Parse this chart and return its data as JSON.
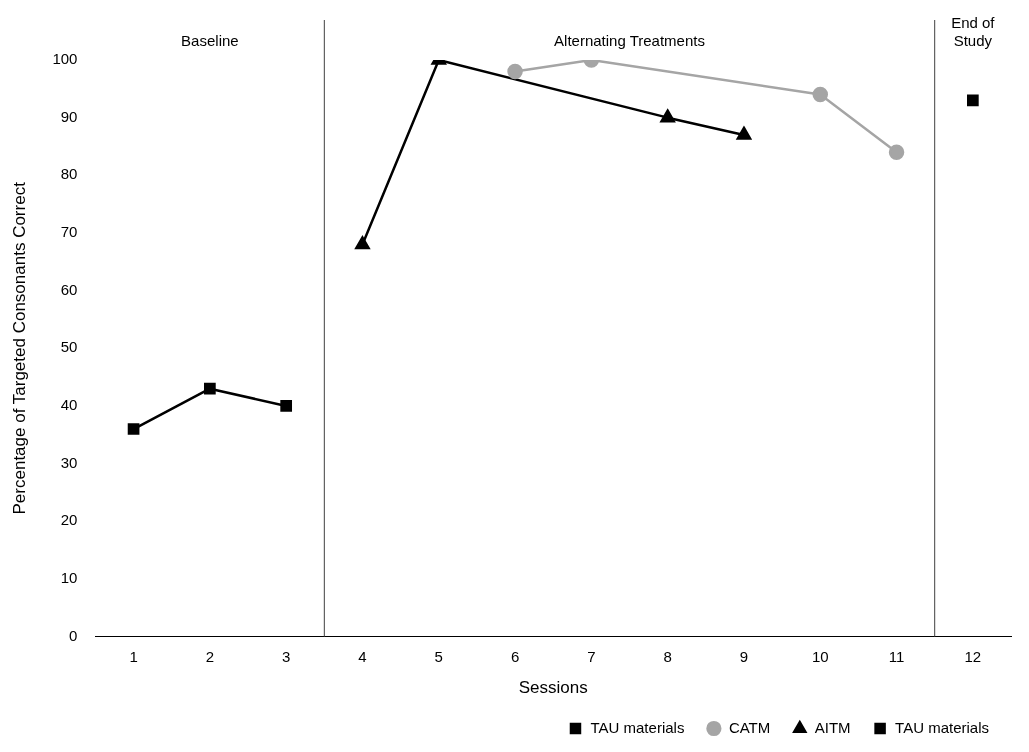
{
  "chart_data": {
    "type": "line",
    "xlabel": "Sessions",
    "ylabel": "Percentage of Targeted Consonants Correct",
    "xlim": [
      0.5,
      12.5
    ],
    "xticks": [
      1,
      2,
      3,
      4,
      5,
      6,
      7,
      8,
      9,
      10,
      11,
      12
    ],
    "ylim": [
      0,
      100
    ],
    "yticks": [
      0,
      10,
      20,
      30,
      40,
      50,
      60,
      70,
      80,
      90,
      100
    ],
    "grid": false,
    "legend": "bottom",
    "line_style": "solid",
    "series": [
      {
        "name": "TAU materials",
        "color": "#000000",
        "marker": "square",
        "x": [
          1,
          2,
          3
        ],
        "values": [
          36,
          43,
          40
        ]
      },
      {
        "name": "CATM",
        "color": "#a5a5a5",
        "marker": "circle",
        "x": [
          6,
          7,
          10,
          11
        ],
        "values": [
          98,
          100,
          94,
          84
        ]
      },
      {
        "name": "AITM",
        "color": "#000000",
        "marker": "triangle",
        "x": [
          4,
          5,
          8,
          9
        ],
        "values": [
          68,
          100,
          90,
          87
        ]
      },
      {
        "name": "TAU materials",
        "color": "#000000",
        "marker": "square",
        "x": [
          12
        ],
        "values": [
          93
        ]
      }
    ],
    "ref_lines": [
      {
        "axis": "x",
        "value": 3.5,
        "color": "#404040"
      },
      {
        "axis": "x",
        "value": 11.5,
        "color": "#404040"
      }
    ],
    "annotations": [
      "Baseline",
      "Alternating Treatments",
      "End of Study"
    ]
  }
}
